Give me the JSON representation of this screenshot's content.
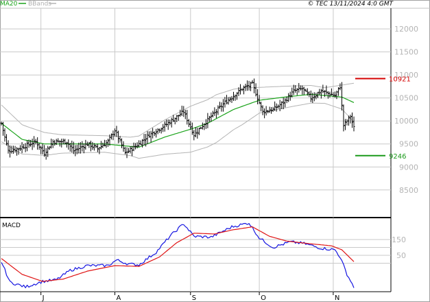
{
  "header": {
    "legend_ma": "MA20",
    "legend_bb": "BBands",
    "copyright": "© TEC 13/11/2024 4:0 GMT"
  },
  "macd_label": "MACD",
  "colors": {
    "price": "#000000",
    "ma": "#1aa31a",
    "bands": "#b4b4b4",
    "resistance": "#d40000",
    "support": "#1a9a1a",
    "macd": "#1515e0",
    "signal": "#e01515",
    "grid": "#c9c9c9"
  },
  "chart_data": [
    {
      "type": "line",
      "subtype": "ohlc-bars",
      "ylim": [
        7900,
        12450
      ],
      "y_ticks": [
        {
          "value": 8500,
          "label": "8500"
        },
        {
          "value": 9000,
          "label": "9000"
        },
        {
          "value": 9500,
          "label": "9500"
        },
        {
          "value": 10000,
          "label": "10000"
        },
        {
          "value": 10500,
          "label": "10500"
        },
        {
          "value": 11000,
          "label": "11000"
        },
        {
          "value": 11500,
          "label": "11500"
        },
        {
          "value": 12000,
          "label": "12000"
        }
      ],
      "x_ticks": [
        {
          "label": "J",
          "index": 23
        },
        {
          "label": "A",
          "index": 66
        },
        {
          "label": "S",
          "index": 110
        },
        {
          "label": "O",
          "index": 150
        },
        {
          "label": "N",
          "index": 193
        }
      ],
      "n_points": 206,
      "price_anchors": [
        [
          0,
          9950
        ],
        [
          4,
          9350
        ],
        [
          10,
          9400
        ],
        [
          20,
          9550
        ],
        [
          25,
          9300
        ],
        [
          30,
          9550
        ],
        [
          38,
          9550
        ],
        [
          42,
          9350
        ],
        [
          50,
          9500
        ],
        [
          56,
          9400
        ],
        [
          62,
          9550
        ],
        [
          66,
          9800
        ],
        [
          72,
          9300
        ],
        [
          80,
          9500
        ],
        [
          86,
          9700
        ],
        [
          95,
          9900
        ],
        [
          106,
          10200
        ],
        [
          112,
          9700
        ],
        [
          122,
          10100
        ],
        [
          130,
          10400
        ],
        [
          140,
          10700
        ],
        [
          146,
          10800
        ],
        [
          152,
          10200
        ],
        [
          158,
          10250
        ],
        [
          164,
          10400
        ],
        [
          170,
          10650
        ],
        [
          175,
          10700
        ],
        [
          180,
          10500
        ],
        [
          186,
          10650
        ],
        [
          194,
          10550
        ],
        [
          197,
          10750
        ],
        [
          199,
          9900
        ],
        [
          203,
          10100
        ],
        [
          205,
          9850
        ]
      ],
      "ma_anchors": [
        [
          0,
          9950
        ],
        [
          12,
          9600
        ],
        [
          25,
          9500
        ],
        [
          40,
          9500
        ],
        [
          60,
          9500
        ],
        [
          80,
          9430
        ],
        [
          95,
          9650
        ],
        [
          110,
          9820
        ],
        [
          120,
          9950
        ],
        [
          135,
          10250
        ],
        [
          150,
          10450
        ],
        [
          165,
          10520
        ],
        [
          180,
          10580
        ],
        [
          198,
          10520
        ],
        [
          205,
          10400
        ]
      ],
      "band_width_anchors": [
        [
          0,
          400
        ],
        [
          15,
          300
        ],
        [
          35,
          200
        ],
        [
          60,
          180
        ],
        [
          75,
          200
        ],
        [
          90,
          330
        ],
        [
          110,
          500
        ],
        [
          125,
          520
        ],
        [
          140,
          400
        ],
        [
          150,
          280
        ],
        [
          170,
          220
        ],
        [
          188,
          170
        ],
        [
          198,
          260
        ],
        [
          205,
          420
        ]
      ],
      "resistance": {
        "value": 10921,
        "label": "10921"
      },
      "support": {
        "value": 9246,
        "label": "9246"
      }
    },
    {
      "type": "line",
      "title": "MACD",
      "ylim": [
        -180,
        280
      ],
      "y_ticks": [
        {
          "value": 0,
          "label": "0"
        },
        {
          "value": 50,
          "label": "50"
        },
        {
          "value": 100,
          "label": "100"
        },
        {
          "value": 150,
          "label": "150"
        }
      ],
      "series": [
        {
          "name": "MACD",
          "anchors": [
            [
              0,
              10
            ],
            [
              5,
              -120
            ],
            [
              14,
              -150
            ],
            [
              24,
              -115
            ],
            [
              32,
              -105
            ],
            [
              40,
              -45
            ],
            [
              50,
              -15
            ],
            [
              62,
              -15
            ],
            [
              67,
              20
            ],
            [
              74,
              -5
            ],
            [
              80,
              -10
            ],
            [
              90,
              70
            ],
            [
              98,
              170
            ],
            [
              106,
              250
            ],
            [
              112,
              170
            ],
            [
              122,
              165
            ],
            [
              134,
              230
            ],
            [
              144,
              255
            ],
            [
              150,
              160
            ],
            [
              158,
              100
            ],
            [
              168,
              135
            ],
            [
              176,
              125
            ],
            [
              186,
              95
            ],
            [
              194,
              85
            ],
            [
              197,
              40
            ],
            [
              201,
              -70
            ],
            [
              205,
              -150
            ]
          ]
        },
        {
          "name": "Signal",
          "anchors": [
            [
              0,
              30
            ],
            [
              12,
              -70
            ],
            [
              24,
              -115
            ],
            [
              36,
              -100
            ],
            [
              50,
              -50
            ],
            [
              66,
              -15
            ],
            [
              80,
              -20
            ],
            [
              92,
              40
            ],
            [
              102,
              130
            ],
            [
              112,
              190
            ],
            [
              124,
              185
            ],
            [
              134,
              210
            ],
            [
              146,
              230
            ],
            [
              156,
              170
            ],
            [
              166,
              140
            ],
            [
              178,
              125
            ],
            [
              192,
              110
            ],
            [
              198,
              85
            ],
            [
              205,
              10
            ]
          ]
        }
      ]
    }
  ]
}
